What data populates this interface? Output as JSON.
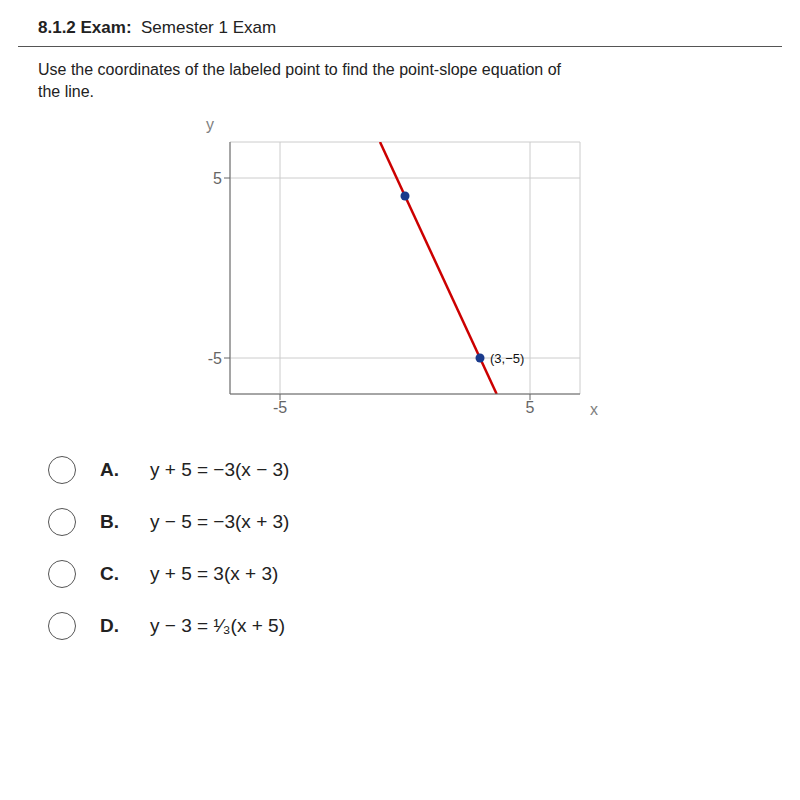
{
  "chart_data": {
    "type": "line",
    "title": "8.1.2 Exam:  Semester 1 Exam",
    "subtitle": "Use the coordinates of the labeled point to find the point-slope equation of\nthe line.",
    "xlabel": "x",
    "ylabel": "y",
    "xlim": [
      -7,
      7
    ],
    "ylim": [
      -7,
      7
    ],
    "xticks": [
      -5,
      5
    ],
    "yticks": [
      -5,
      5
    ],
    "grid": true,
    "series": [
      {
        "type": "line",
        "color": "#cc0000",
        "x": [
          -1,
          3.6666666666666665
        ],
        "values": [
          7,
          -7
        ]
      },
      {
        "type": "scatter",
        "color": "#1a3a8c",
        "x": [
          0,
          3
        ],
        "values": [
          4,
          -5
        ]
      }
    ],
    "annotations": [
      {
        "text": "(3,−5)",
        "x": 3,
        "y": -5
      }
    ],
    "choices": [
      {
        "letter": "A.",
        "text": "y + 5 = −3(x − 3)"
      },
      {
        "letter": "B.",
        "text": "y − 5 = −3(x + 3)"
      },
      {
        "letter": "C.",
        "text": "y + 5 = 3(x + 3)"
      },
      {
        "letter": "D.",
        "text": "y − 3 = ¹⁄₃(x + 5)"
      }
    ]
  }
}
